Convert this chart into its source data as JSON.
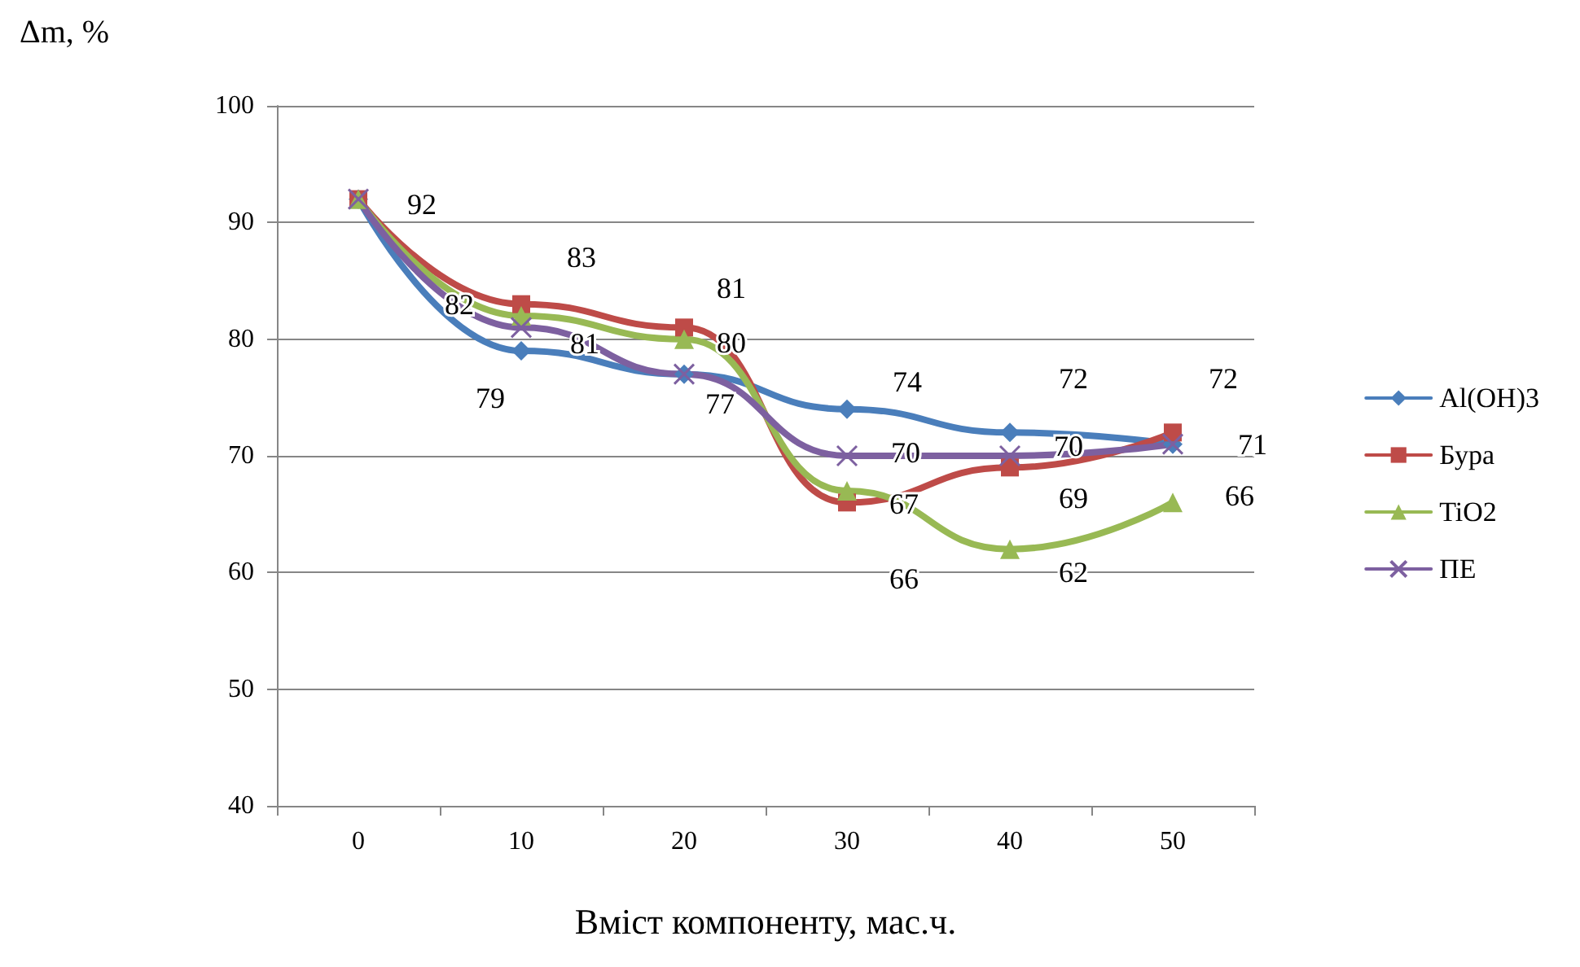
{
  "chart_data": {
    "type": "line",
    "xlabel": "Вміст компоненту, мас.ч.",
    "ylabel": "Δm, %",
    "categories": [
      "0",
      "10",
      "20",
      "30",
      "40",
      "50"
    ],
    "ylim": [
      40,
      100
    ],
    "yticks": [
      40,
      50,
      60,
      70,
      80,
      90,
      100
    ],
    "grid": "y",
    "legend": "right",
    "line_style": "solid",
    "series": [
      {
        "name": "Al(OH)3",
        "color": "#4a7ebb",
        "marker": "diamond",
        "values": [
          92,
          79,
          77,
          74,
          72,
          71
        ],
        "value_labels": [
          null,
          "79",
          "77",
          "74",
          "72",
          "71"
        ]
      },
      {
        "name": "Бура",
        "color": "#be4b48",
        "marker": "square",
        "values": [
          92,
          83,
          81,
          66,
          69,
          72
        ],
        "value_labels": [
          "92",
          "83",
          "81",
          "66",
          "69",
          "72"
        ]
      },
      {
        "name": "TiO2",
        "color": "#98b954",
        "marker": "triangle",
        "values": [
          92,
          82,
          80,
          67,
          62,
          66
        ],
        "value_labels": [
          null,
          "82",
          "80",
          "67",
          "62",
          "66"
        ]
      },
      {
        "name": "ПЕ",
        "color": "#7d60a0",
        "marker": "cross",
        "values": [
          92,
          81,
          77,
          70,
          70,
          71
        ],
        "value_labels": [
          null,
          "81",
          null,
          "70",
          "70",
          null
        ]
      }
    ]
  }
}
